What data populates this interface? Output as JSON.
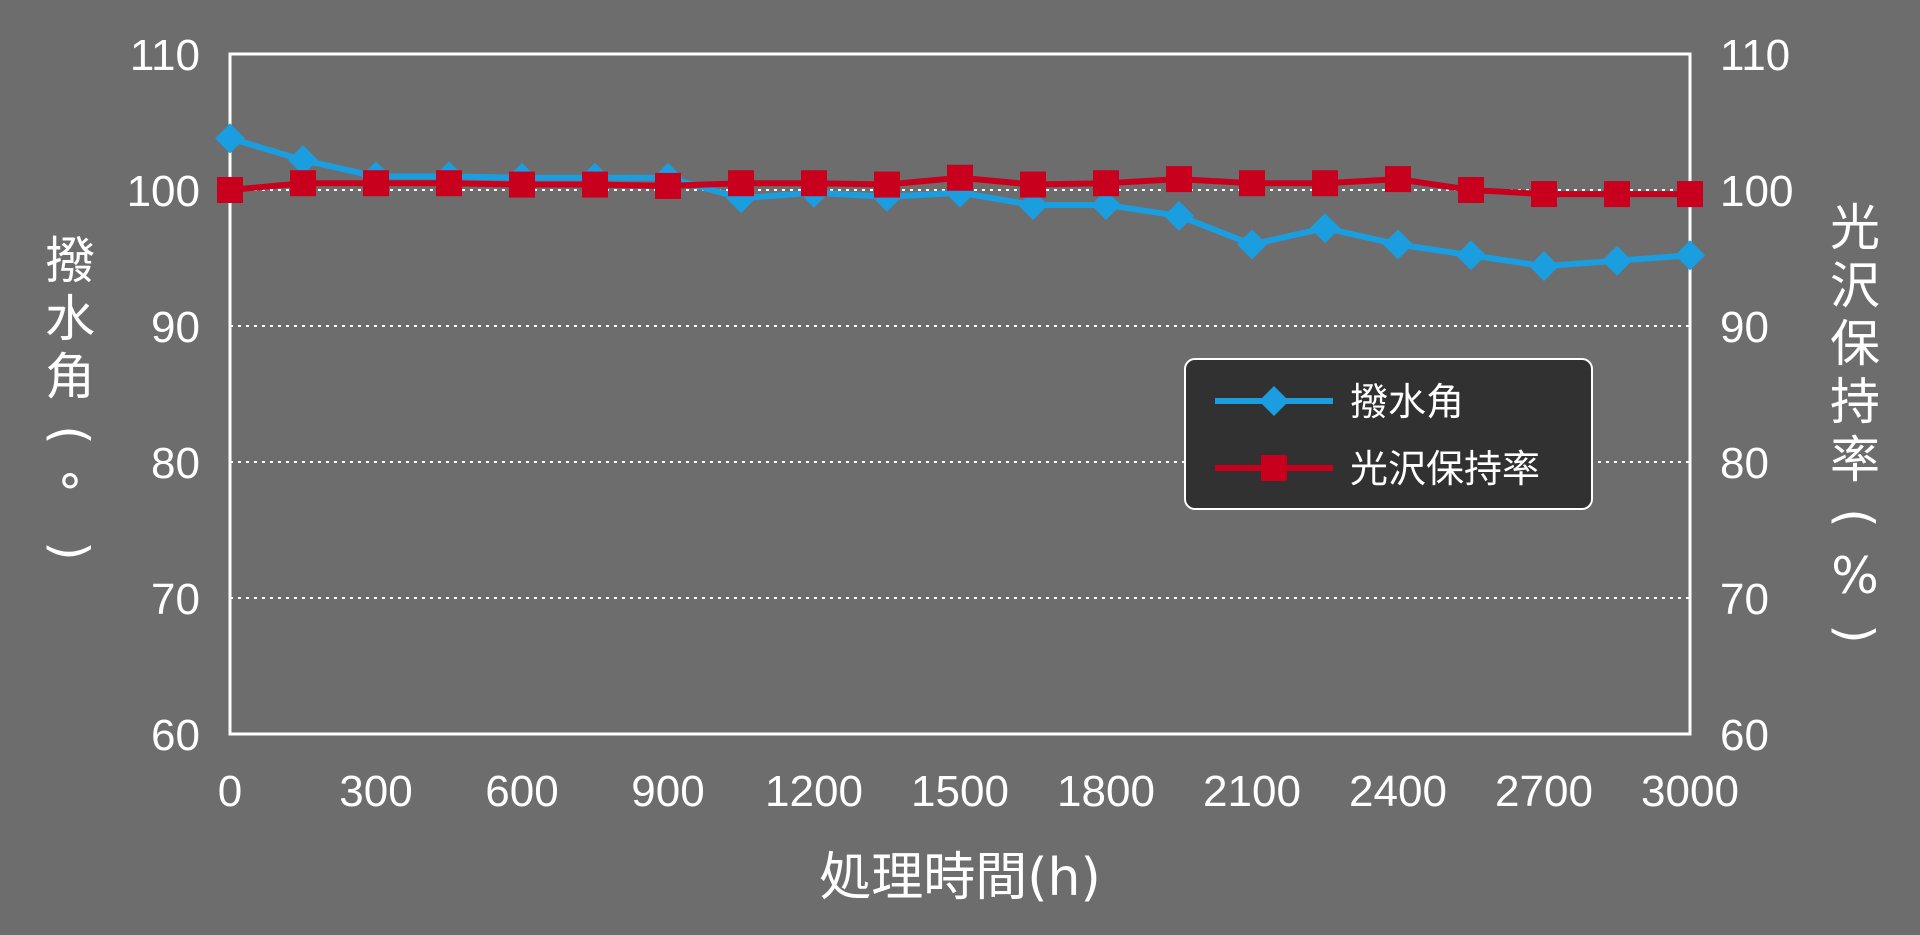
{
  "chart_data": {
    "type": "line",
    "xlabel": "処理時間(h)",
    "ylabel_left": [
      "撥",
      "水",
      "角",
      "(",
      "°",
      ")"
    ],
    "ylabel_right": [
      "光",
      "沢",
      "保",
      "持",
      "率",
      "(",
      "%",
      ")"
    ],
    "xlim": [
      0,
      3000
    ],
    "ylim": [
      60,
      110
    ],
    "yticks": [
      "60",
      "70",
      "80",
      "90",
      "100",
      "110"
    ],
    "xticks": [
      "0",
      "300",
      "600",
      "900",
      "1200",
      "1500",
      "1800",
      "2100",
      "2400",
      "2700",
      "3000"
    ],
    "grid_values": [
      70,
      80,
      90,
      100
    ],
    "legend_placement": "center-right",
    "x": [
      0,
      150,
      300,
      450,
      600,
      750,
      900,
      1050,
      1200,
      1350,
      1500,
      1650,
      1800,
      1950,
      2100,
      2250,
      2400,
      2550,
      2700,
      2850,
      3000
    ],
    "series": [
      {
        "name": "撥水角",
        "color": "#1a9ee0",
        "marker": "diamond",
        "values": [
          103.8,
          102.2,
          101.0,
          101.0,
          100.9,
          100.9,
          100.9,
          99.4,
          99.8,
          99.5,
          99.8,
          98.9,
          98.9,
          98.1,
          96.0,
          97.2,
          96.0,
          95.2,
          94.4,
          94.8,
          95.2
        ]
      },
      {
        "name": "光沢保持率",
        "color": "#c8001e",
        "marker": "square",
        "values": [
          100.0,
          100.5,
          100.5,
          100.5,
          100.4,
          100.4,
          100.3,
          100.5,
          100.5,
          100.4,
          100.9,
          100.4,
          100.5,
          100.8,
          100.5,
          100.5,
          100.8,
          100.0,
          99.7,
          99.7,
          99.7
        ]
      }
    ]
  }
}
